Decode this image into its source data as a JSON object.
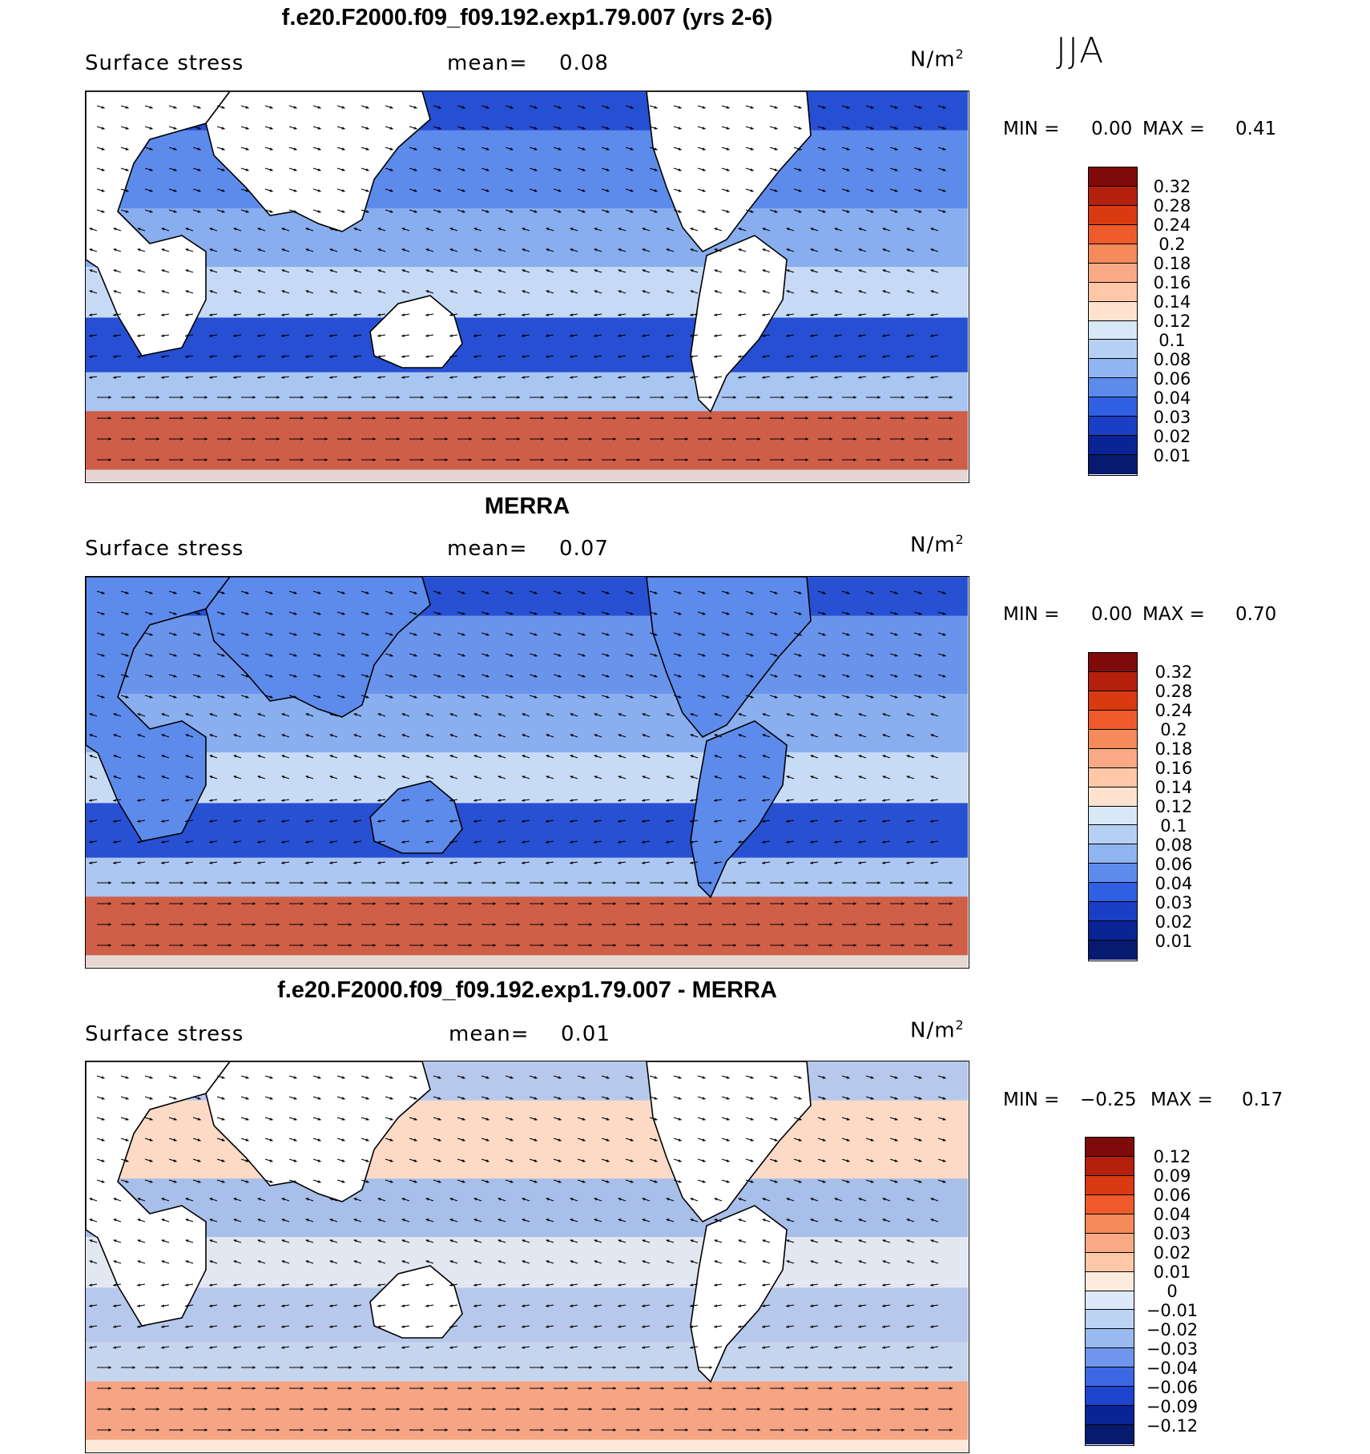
{
  "season": "JJA",
  "units_base": "N/m",
  "units_exp": "2",
  "mean_label": "mean=",
  "min_label": "MIN =",
  "max_label": "MAX =",
  "panels": [
    {
      "title": "f.e20.F2000.f09_f09.192.exp1.79.007 (yrs 2-6)",
      "variable": "Surface stress",
      "mean": "0.08",
      "min": "0.00",
      "max": "0.41",
      "levels": [
        "0.32",
        "0.28",
        "0.24",
        "0.2",
        "0.18",
        "0.16",
        "0.14",
        "0.12",
        "0.1",
        "0.08",
        "0.06",
        "0.04",
        "0.03",
        "0.02",
        "0.01"
      ],
      "colors": [
        "#7f0a0a",
        "#b4200c",
        "#d93a10",
        "#ef5a2a",
        "#f58a5a",
        "#f9aa84",
        "#fcc8a8",
        "#fde3cf",
        "#d8e8f7",
        "#b6d0f3",
        "#8fb4f0",
        "#5d8bec",
        "#2f5fe3",
        "#1a3fc4",
        "#0a2496",
        "#061a6e"
      ],
      "hi_color": "#e2562c",
      "lo_color": "#1c44cf",
      "mid_color": "#5d8bec"
    },
    {
      "title": "MERRA",
      "variable": "Surface stress",
      "mean": "0.07",
      "min": "0.00",
      "max": "0.70",
      "levels": [
        "0.32",
        "0.28",
        "0.24",
        "0.2",
        "0.18",
        "0.16",
        "0.14",
        "0.12",
        "0.1",
        "0.08",
        "0.06",
        "0.04",
        "0.03",
        "0.02",
        "0.01"
      ],
      "colors": [
        "#7f0a0a",
        "#b4200c",
        "#d93a10",
        "#ef5a2a",
        "#f58a5a",
        "#f9aa84",
        "#fcc8a8",
        "#fde3cf",
        "#d8e8f7",
        "#b6d0f3",
        "#8fb4f0",
        "#5d8bec",
        "#2f5fe3",
        "#1a3fc4",
        "#0a2496",
        "#061a6e"
      ],
      "hi_color": "#e2562c",
      "lo_color": "#1c44cf",
      "mid_color": "#6a94ec"
    },
    {
      "title": "f.e20.F2000.f09_f09.192.exp1.79.007 - MERRA",
      "variable": "Surface stress",
      "mean": "0.01",
      "min": "−0.25",
      "max": "0.17",
      "levels": [
        "0.12",
        "0.09",
        "0.06",
        "0.04",
        "0.03",
        "0.02",
        "0.01",
        "0",
        "−0.01",
        "−0.02",
        "−0.03",
        "−0.04",
        "−0.06",
        "−0.09",
        "−0.12"
      ],
      "colors": [
        "#7f0a0a",
        "#b4200c",
        "#d93a10",
        "#ef5a2a",
        "#f58a5a",
        "#f9aa84",
        "#fcc8a8",
        "#fdebdc",
        "#dde9f8",
        "#bcd3f4",
        "#99baf0",
        "#6f96ec",
        "#3d68e4",
        "#1c44cf",
        "#0a2496",
        "#061a6e"
      ],
      "hi_color": "#f39a78",
      "lo_color": "#a9c4f2",
      "mid_color": "#fbd9c6"
    }
  ]
}
